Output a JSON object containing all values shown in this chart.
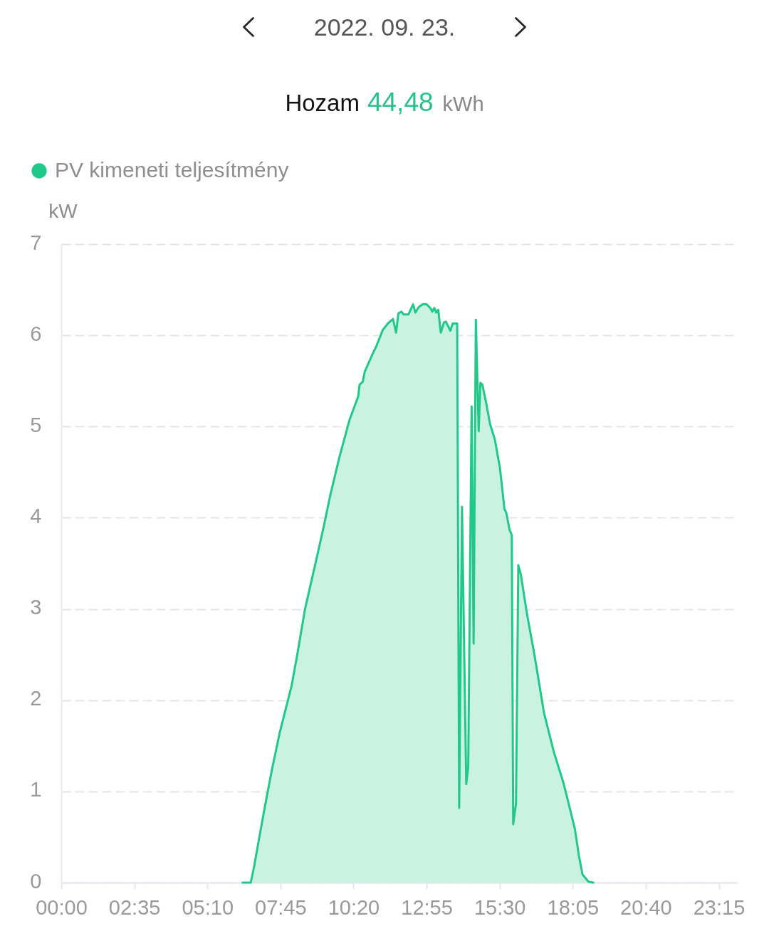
{
  "chart_data": {
    "type": "area",
    "title": "2022. 09. 23.",
    "subtitle": "Hozam 44,48 kWh",
    "ylabel": "kW",
    "series": [
      {
        "name": "PV kimeneti teljesítmény",
        "color": "#20c88a",
        "x": [
          6.41,
          6.7,
          6.81,
          7.18,
          7.45,
          7.73,
          8.14,
          8.34,
          8.62,
          8.96,
          9.3,
          9.5,
          9.84,
          10.19,
          10.5,
          10.55,
          10.66,
          10.73,
          11.0,
          11.14,
          11.37,
          11.55,
          11.73,
          11.84,
          11.92,
          12.03,
          12.1,
          12.28,
          12.44,
          12.52,
          12.64,
          12.78,
          12.92,
          13.05,
          13.12,
          13.19,
          13.26,
          13.33,
          13.42,
          13.53,
          13.6,
          13.76,
          13.84,
          14.0,
          14.07,
          14.17,
          14.32,
          14.39,
          14.51,
          14.58,
          14.66,
          14.76,
          14.82,
          14.89,
          15.03,
          15.16,
          15.33,
          15.51,
          15.67,
          15.74,
          15.85,
          15.93,
          15.98,
          16.08,
          16.16,
          16.25,
          16.46,
          16.73,
          17.07,
          17.41,
          17.75,
          17.89,
          18.16,
          18.3,
          18.43,
          18.64,
          18.81
        ],
        "values": [
          0,
          0,
          0.16,
          0.8,
          1.24,
          1.65,
          2.15,
          2.49,
          3.0,
          3.46,
          3.93,
          4.23,
          4.67,
          5.07,
          5.33,
          5.46,
          5.49,
          5.6,
          5.79,
          5.88,
          6.06,
          6.13,
          6.18,
          6.03,
          6.24,
          6.26,
          6.23,
          6.23,
          6.34,
          6.25,
          6.31,
          6.34,
          6.34,
          6.3,
          6.26,
          6.3,
          6.25,
          6.28,
          6.03,
          6.14,
          6.15,
          6.05,
          6.13,
          6.13,
          0.82,
          4.12,
          1.08,
          1.27,
          5.22,
          2.62,
          6.17,
          4.95,
          5.48,
          5.46,
          5.25,
          5.03,
          4.86,
          4.55,
          4.1,
          4.05,
          3.87,
          3.81,
          0.64,
          0.87,
          3.48,
          3.38,
          2.96,
          2.5,
          1.86,
          1.44,
          1.1,
          0.93,
          0.59,
          0.3,
          0.09,
          0.01,
          0
        ]
      }
    ],
    "xlim": [
      0,
      23.9167
    ],
    "xticks": [
      {
        "value": 0,
        "label": "00:00"
      },
      {
        "value": 2.5833,
        "label": "02:35"
      },
      {
        "value": 5.1667,
        "label": "05:10"
      },
      {
        "value": 7.75,
        "label": "07:45"
      },
      {
        "value": 10.3333,
        "label": "10:20"
      },
      {
        "value": 12.9167,
        "label": "12:55"
      },
      {
        "value": 15.5,
        "label": "15:30"
      },
      {
        "value": 18.0833,
        "label": "18:05"
      },
      {
        "value": 20.6667,
        "label": "20:40"
      },
      {
        "value": 23.25,
        "label": "23:15"
      }
    ],
    "ylim": [
      0,
      7
    ],
    "yticks": [
      0,
      1,
      2,
      3,
      4,
      5,
      6,
      7
    ],
    "grid": "y",
    "legend": "top left"
  }
}
